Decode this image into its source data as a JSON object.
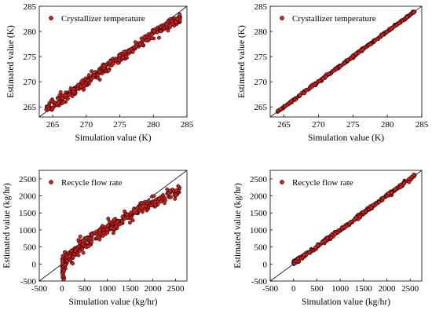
{
  "colors": {
    "marker_fill": "#cc1f1f",
    "marker_edge": "#000000",
    "axes": "#000000",
    "background": "#ffffff"
  },
  "chart_data": [
    {
      "type": "scatter",
      "position": "top-left",
      "xlabel": "Simulation value (K)",
      "ylabel": "Estimated value (K)",
      "xlim": [
        263,
        285
      ],
      "ylim": [
        263,
        285
      ],
      "xticks": [
        265,
        270,
        275,
        280,
        285
      ],
      "yticks": [
        265,
        270,
        275,
        280,
        285
      ],
      "legend": "Crystallizer temperature",
      "legend_location": "top-left",
      "reference_line": "y = x",
      "trend": [
        [
          264.0,
          264.6
        ],
        [
          266.0,
          266.3
        ],
        [
          268.0,
          268.1
        ],
        [
          270.0,
          270.0
        ],
        [
          272.0,
          271.9
        ],
        [
          274.0,
          273.8
        ],
        [
          276.0,
          275.6
        ],
        [
          278.0,
          277.6
        ],
        [
          280.0,
          279.6
        ],
        [
          282.0,
          281.3
        ],
        [
          284.0,
          282.6
        ]
      ],
      "spread": 0.45
    },
    {
      "type": "scatter",
      "position": "top-right",
      "xlabel": "Simulation value (K)",
      "ylabel": "Estimated value (K)",
      "xlim": [
        263,
        285
      ],
      "ylim": [
        263,
        285
      ],
      "xticks": [
        265,
        270,
        275,
        280,
        285
      ],
      "yticks": [
        265,
        270,
        275,
        280,
        285
      ],
      "legend": "Crystallizer temperature",
      "legend_location": "top-left",
      "reference_line": "y = x",
      "trend": [
        [
          264.0,
          264.0
        ],
        [
          270.0,
          270.0
        ],
        [
          276.0,
          276.0
        ],
        [
          280.0,
          280.0
        ],
        [
          284.0,
          284.0
        ]
      ],
      "spread": 0.12
    },
    {
      "type": "scatter",
      "position": "bottom-left",
      "xlabel": "Simulation value (kg/hr)",
      "ylabel": "Estimated value (kg/hr)",
      "xlim": [
        -500,
        2750
      ],
      "ylim": [
        -500,
        2750
      ],
      "xticks": [
        -500,
        0,
        500,
        1000,
        1500,
        2000,
        2500
      ],
      "yticks": [
        -500,
        0,
        500,
        1000,
        1500,
        2000,
        2500
      ],
      "legend": "Recycle flow rate",
      "legend_location": "top-left",
      "reference_line": "y = x",
      "trend": [
        [
          0,
          -150
        ],
        [
          100,
          150
        ],
        [
          300,
          420
        ],
        [
          600,
          700
        ],
        [
          1000,
          1050
        ],
        [
          1500,
          1450
        ],
        [
          2000,
          1800
        ],
        [
          2300,
          2000
        ],
        [
          2600,
          2200
        ]
      ],
      "spread": 90
    },
    {
      "type": "scatter",
      "position": "bottom-right",
      "xlabel": "Simulation value (kg/hr)",
      "ylabel": "Estimated value (kg/hr)",
      "xlim": [
        -500,
        2750
      ],
      "ylim": [
        -500,
        2750
      ],
      "xticks": [
        -500,
        0,
        500,
        1000,
        1500,
        2000,
        2500
      ],
      "yticks": [
        -500,
        0,
        500,
        1000,
        1500,
        2000,
        2500
      ],
      "legend": "Recycle flow rate",
      "legend_location": "top-left",
      "reference_line": "y = x",
      "trend": [
        [
          0,
          30
        ],
        [
          500,
          510
        ],
        [
          1000,
          1000
        ],
        [
          1500,
          1490
        ],
        [
          2000,
          2000
        ],
        [
          2600,
          2600
        ]
      ],
      "spread": 25
    }
  ]
}
